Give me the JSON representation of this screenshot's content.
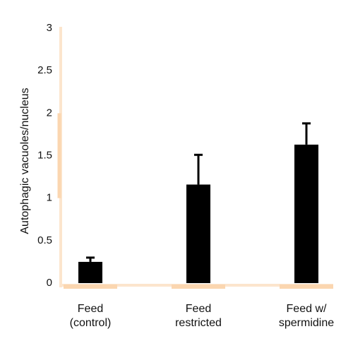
{
  "chart_data": {
    "type": "bar",
    "categories": [
      "Feed (control)",
      "Feed restricted",
      "Feed w/ spermidine"
    ],
    "category_lines": [
      [
        "Feed",
        "(control)"
      ],
      [
        "Feed",
        "restricted"
      ],
      [
        "Feed w/",
        "spermidine"
      ]
    ],
    "values": [
      0.25,
      1.16,
      1.63
    ],
    "error_upper": [
      0.3,
      1.51,
      1.88
    ],
    "ylabel": "Autophagic vacuoles/nucleus",
    "ylim": [
      0,
      3
    ],
    "yticks": [
      0,
      0.5,
      1,
      1.5,
      2,
      2.5,
      3
    ],
    "ytick_labels": [
      "0",
      "0.5",
      "1",
      "1.5",
      "2",
      "2.5",
      "3"
    ],
    "grid": false,
    "legend": "none",
    "colors": {
      "bar": "#000000",
      "axis": "#fce5cd",
      "axis_accent": "#fbd6b0",
      "text": "#111111"
    }
  }
}
